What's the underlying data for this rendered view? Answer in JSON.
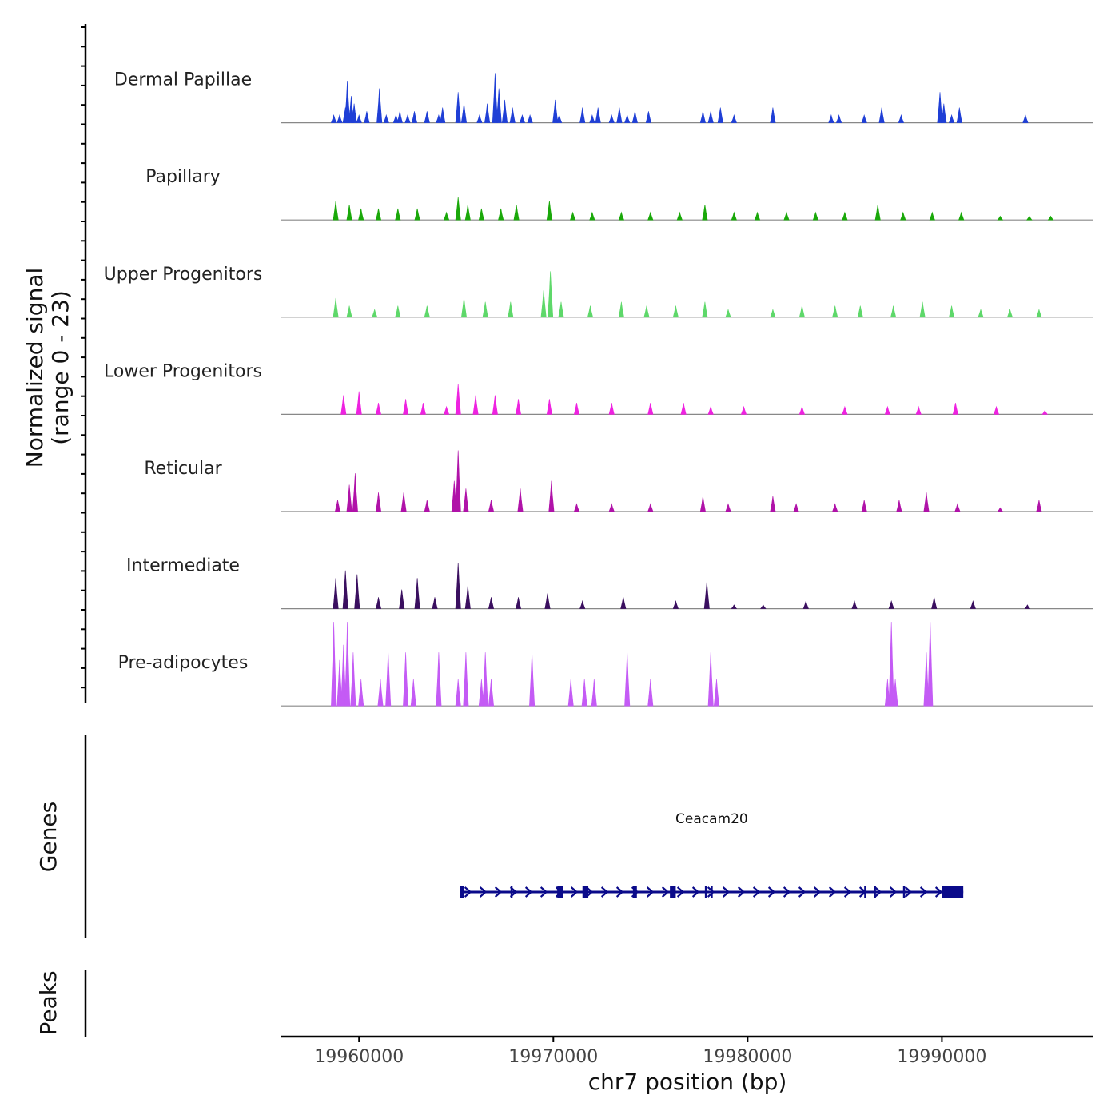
{
  "chart_data": {
    "type": "area",
    "title": "",
    "chromosome": "chr7",
    "xlabel": "chr7 position (bp)",
    "ylabel_line1": "Normalized signal",
    "ylabel_line2": "(range 0 - 23)",
    "y_range": [
      0,
      23
    ],
    "xlim": [
      19956000,
      19997800
    ],
    "x_ticks": [
      19960000,
      19970000,
      19980000,
      19990000
    ],
    "x_tick_labels": [
      "19960000",
      "19970000",
      "19980000",
      "19990000"
    ],
    "region_panels": [
      "Genes",
      "Peaks"
    ],
    "tracks": [
      {
        "name": "Dermal Papillae",
        "color": "#1f3fd6",
        "peaks": [
          {
            "x": 19958700,
            "h": 2
          },
          {
            "x": 19959000,
            "h": 2
          },
          {
            "x": 19959300,
            "h": 4
          },
          {
            "x": 19959400,
            "h": 11
          },
          {
            "x": 19959600,
            "h": 7
          },
          {
            "x": 19959750,
            "h": 5
          },
          {
            "x": 19960000,
            "h": 2
          },
          {
            "x": 19960400,
            "h": 3
          },
          {
            "x": 19961050,
            "h": 9
          },
          {
            "x": 19961400,
            "h": 2
          },
          {
            "x": 19961900,
            "h": 2
          },
          {
            "x": 19962100,
            "h": 3
          },
          {
            "x": 19962500,
            "h": 2
          },
          {
            "x": 19962850,
            "h": 3
          },
          {
            "x": 19963500,
            "h": 3
          },
          {
            "x": 19964100,
            "h": 2
          },
          {
            "x": 19964300,
            "h": 4
          },
          {
            "x": 19965100,
            "h": 8
          },
          {
            "x": 19965400,
            "h": 5
          },
          {
            "x": 19966200,
            "h": 2
          },
          {
            "x": 19966600,
            "h": 5
          },
          {
            "x": 19967000,
            "h": 13
          },
          {
            "x": 19967200,
            "h": 9
          },
          {
            "x": 19967500,
            "h": 6
          },
          {
            "x": 19967900,
            "h": 4
          },
          {
            "x": 19968400,
            "h": 2
          },
          {
            "x": 19968800,
            "h": 2
          },
          {
            "x": 19970100,
            "h": 6
          },
          {
            "x": 19970300,
            "h": 2
          },
          {
            "x": 19971500,
            "h": 4
          },
          {
            "x": 19972000,
            "h": 2
          },
          {
            "x": 19972300,
            "h": 4
          },
          {
            "x": 19973000,
            "h": 2
          },
          {
            "x": 19973400,
            "h": 4
          },
          {
            "x": 19973800,
            "h": 2
          },
          {
            "x": 19974200,
            "h": 3
          },
          {
            "x": 19974900,
            "h": 3
          },
          {
            "x": 19977700,
            "h": 3
          },
          {
            "x": 19978100,
            "h": 3
          },
          {
            "x": 19978600,
            "h": 4
          },
          {
            "x": 19979300,
            "h": 2
          },
          {
            "x": 19981300,
            "h": 4
          },
          {
            "x": 19984300,
            "h": 2
          },
          {
            "x": 19984700,
            "h": 2
          },
          {
            "x": 19986000,
            "h": 2
          },
          {
            "x": 19986900,
            "h": 4
          },
          {
            "x": 19987900,
            "h": 2
          },
          {
            "x": 19989900,
            "h": 8
          },
          {
            "x": 19990100,
            "h": 5
          },
          {
            "x": 19990500,
            "h": 2
          },
          {
            "x": 19990900,
            "h": 4
          },
          {
            "x": 19994300,
            "h": 2
          }
        ]
      },
      {
        "name": "Papillary",
        "color": "#1aa80a",
        "peaks": [
          {
            "x": 19958800,
            "h": 5
          },
          {
            "x": 19959500,
            "h": 4
          },
          {
            "x": 19960100,
            "h": 3
          },
          {
            "x": 19961000,
            "h": 3
          },
          {
            "x": 19962000,
            "h": 3
          },
          {
            "x": 19963000,
            "h": 3
          },
          {
            "x": 19964500,
            "h": 2
          },
          {
            "x": 19965100,
            "h": 6
          },
          {
            "x": 19965600,
            "h": 4
          },
          {
            "x": 19966300,
            "h": 3
          },
          {
            "x": 19967300,
            "h": 3
          },
          {
            "x": 19968100,
            "h": 4
          },
          {
            "x": 19969800,
            "h": 5
          },
          {
            "x": 19971000,
            "h": 2
          },
          {
            "x": 19972000,
            "h": 2
          },
          {
            "x": 19973500,
            "h": 2
          },
          {
            "x": 19975000,
            "h": 2
          },
          {
            "x": 19976500,
            "h": 2
          },
          {
            "x": 19977800,
            "h": 4
          },
          {
            "x": 19979300,
            "h": 2
          },
          {
            "x": 19980500,
            "h": 2
          },
          {
            "x": 19982000,
            "h": 2
          },
          {
            "x": 19983500,
            "h": 2
          },
          {
            "x": 19985000,
            "h": 2
          },
          {
            "x": 19986700,
            "h": 4
          },
          {
            "x": 19988000,
            "h": 2
          },
          {
            "x": 19989500,
            "h": 2
          },
          {
            "x": 19991000,
            "h": 2
          },
          {
            "x": 19993000,
            "h": 1
          },
          {
            "x": 19994500,
            "h": 1
          },
          {
            "x": 19995600,
            "h": 1
          }
        ]
      },
      {
        "name": "Upper Progenitors",
        "color": "#5ed86a",
        "peaks": [
          {
            "x": 19958800,
            "h": 5
          },
          {
            "x": 19959500,
            "h": 3
          },
          {
            "x": 19960800,
            "h": 2
          },
          {
            "x": 19962000,
            "h": 3
          },
          {
            "x": 19963500,
            "h": 3
          },
          {
            "x": 19965400,
            "h": 5
          },
          {
            "x": 19966500,
            "h": 4
          },
          {
            "x": 19967800,
            "h": 4
          },
          {
            "x": 19969500,
            "h": 7
          },
          {
            "x": 19969850,
            "h": 12
          },
          {
            "x": 19970400,
            "h": 4
          },
          {
            "x": 19971900,
            "h": 3
          },
          {
            "x": 19973500,
            "h": 4
          },
          {
            "x": 19974800,
            "h": 3
          },
          {
            "x": 19976300,
            "h": 3
          },
          {
            "x": 19977800,
            "h": 4
          },
          {
            "x": 19979000,
            "h": 2
          },
          {
            "x": 19981300,
            "h": 2
          },
          {
            "x": 19982800,
            "h": 3
          },
          {
            "x": 19984500,
            "h": 3
          },
          {
            "x": 19985800,
            "h": 3
          },
          {
            "x": 19987500,
            "h": 3
          },
          {
            "x": 19989000,
            "h": 4
          },
          {
            "x": 19990500,
            "h": 3
          },
          {
            "x": 19992000,
            "h": 2
          },
          {
            "x": 19993500,
            "h": 2
          },
          {
            "x": 19995000,
            "h": 2
          }
        ]
      },
      {
        "name": "Lower Progenitors",
        "color": "#ee22e0",
        "peaks": [
          {
            "x": 19959200,
            "h": 5
          },
          {
            "x": 19960000,
            "h": 6
          },
          {
            "x": 19961000,
            "h": 3
          },
          {
            "x": 19962400,
            "h": 4
          },
          {
            "x": 19963300,
            "h": 3
          },
          {
            "x": 19964500,
            "h": 2
          },
          {
            "x": 19965100,
            "h": 8
          },
          {
            "x": 19966000,
            "h": 5
          },
          {
            "x": 19967000,
            "h": 5
          },
          {
            "x": 19968200,
            "h": 4
          },
          {
            "x": 19969800,
            "h": 4
          },
          {
            "x": 19971200,
            "h": 3
          },
          {
            "x": 19973000,
            "h": 3
          },
          {
            "x": 19975000,
            "h": 3
          },
          {
            "x": 19976700,
            "h": 3
          },
          {
            "x": 19978100,
            "h": 2
          },
          {
            "x": 19979800,
            "h": 2
          },
          {
            "x": 19982800,
            "h": 2
          },
          {
            "x": 19985000,
            "h": 2
          },
          {
            "x": 19987200,
            "h": 2
          },
          {
            "x": 19988800,
            "h": 2
          },
          {
            "x": 19990700,
            "h": 3
          },
          {
            "x": 19992800,
            "h": 2
          },
          {
            "x": 19995300,
            "h": 1
          }
        ]
      },
      {
        "name": "Reticular",
        "color": "#b012a8",
        "peaks": [
          {
            "x": 19958900,
            "h": 3
          },
          {
            "x": 19959500,
            "h": 7
          },
          {
            "x": 19959800,
            "h": 10
          },
          {
            "x": 19961000,
            "h": 5
          },
          {
            "x": 19962300,
            "h": 5
          },
          {
            "x": 19963500,
            "h": 3
          },
          {
            "x": 19964900,
            "h": 8
          },
          {
            "x": 19965100,
            "h": 16
          },
          {
            "x": 19965500,
            "h": 6
          },
          {
            "x": 19966800,
            "h": 3
          },
          {
            "x": 19968300,
            "h": 6
          },
          {
            "x": 19969900,
            "h": 8
          },
          {
            "x": 19971200,
            "h": 2
          },
          {
            "x": 19973000,
            "h": 2
          },
          {
            "x": 19975000,
            "h": 2
          },
          {
            "x": 19977700,
            "h": 4
          },
          {
            "x": 19979000,
            "h": 2
          },
          {
            "x": 19981300,
            "h": 4
          },
          {
            "x": 19982500,
            "h": 2
          },
          {
            "x": 19984500,
            "h": 2
          },
          {
            "x": 19986000,
            "h": 3
          },
          {
            "x": 19987800,
            "h": 3
          },
          {
            "x": 19989200,
            "h": 5
          },
          {
            "x": 19990800,
            "h": 2
          },
          {
            "x": 19993000,
            "h": 1
          },
          {
            "x": 19995000,
            "h": 3
          }
        ]
      },
      {
        "name": "Intermediate",
        "color": "#3a0f5f",
        "peaks": [
          {
            "x": 19958800,
            "h": 8
          },
          {
            "x": 19959300,
            "h": 10
          },
          {
            "x": 19959900,
            "h": 9
          },
          {
            "x": 19961000,
            "h": 3
          },
          {
            "x": 19962200,
            "h": 5
          },
          {
            "x": 19963000,
            "h": 8
          },
          {
            "x": 19963900,
            "h": 3
          },
          {
            "x": 19965100,
            "h": 12
          },
          {
            "x": 19965600,
            "h": 6
          },
          {
            "x": 19966800,
            "h": 3
          },
          {
            "x": 19968200,
            "h": 3
          },
          {
            "x": 19969700,
            "h": 4
          },
          {
            "x": 19971500,
            "h": 2
          },
          {
            "x": 19973600,
            "h": 3
          },
          {
            "x": 19976300,
            "h": 2
          },
          {
            "x": 19977900,
            "h": 7
          },
          {
            "x": 19979300,
            "h": 1
          },
          {
            "x": 19980800,
            "h": 1
          },
          {
            "x": 19983000,
            "h": 2
          },
          {
            "x": 19985500,
            "h": 2
          },
          {
            "x": 19987400,
            "h": 2
          },
          {
            "x": 19989600,
            "h": 3
          },
          {
            "x": 19991600,
            "h": 2
          },
          {
            "x": 19994400,
            "h": 1
          }
        ]
      },
      {
        "name": "Pre-adipocytes",
        "color": "#c45bf5",
        "peaks": [
          {
            "x": 19958700,
            "h": 22
          },
          {
            "x": 19959000,
            "h": 12
          },
          {
            "x": 19959200,
            "h": 16
          },
          {
            "x": 19959400,
            "h": 22
          },
          {
            "x": 19959700,
            "h": 14
          },
          {
            "x": 19960100,
            "h": 7
          },
          {
            "x": 19961100,
            "h": 7
          },
          {
            "x": 19961500,
            "h": 14
          },
          {
            "x": 19962400,
            "h": 14
          },
          {
            "x": 19962800,
            "h": 7
          },
          {
            "x": 19964100,
            "h": 14
          },
          {
            "x": 19965100,
            "h": 7
          },
          {
            "x": 19965500,
            "h": 14
          },
          {
            "x": 19966300,
            "h": 7
          },
          {
            "x": 19966500,
            "h": 14
          },
          {
            "x": 19966800,
            "h": 7
          },
          {
            "x": 19968900,
            "h": 14
          },
          {
            "x": 19970900,
            "h": 7
          },
          {
            "x": 19971600,
            "h": 7
          },
          {
            "x": 19972100,
            "h": 7
          },
          {
            "x": 19973800,
            "h": 14
          },
          {
            "x": 19975000,
            "h": 7
          },
          {
            "x": 19978100,
            "h": 14
          },
          {
            "x": 19978400,
            "h": 7
          },
          {
            "x": 19987200,
            "h": 7
          },
          {
            "x": 19987400,
            "h": 22
          },
          {
            "x": 19987600,
            "h": 7
          },
          {
            "x": 19989200,
            "h": 14
          },
          {
            "x": 19989400,
            "h": 22
          }
        ]
      }
    ],
    "genes": [
      {
        "name": "Ceacam20",
        "strand": "+",
        "color": "#0a0a8a",
        "start": 19965200,
        "end": 19991100,
        "exons": [
          [
            19965200,
            19965400
          ],
          [
            19967800,
            19967900
          ],
          [
            19970200,
            19970500
          ],
          [
            19971500,
            19971800
          ],
          [
            19974100,
            19974300
          ],
          [
            19976000,
            19976300
          ],
          [
            19977800,
            19977900
          ],
          [
            19978100,
            19978200
          ],
          [
            19986000,
            19986100
          ],
          [
            19986500,
            19986600
          ],
          [
            19988000,
            19988100
          ],
          [
            19990000,
            19991100
          ]
        ]
      }
    ],
    "peaks_track": []
  }
}
